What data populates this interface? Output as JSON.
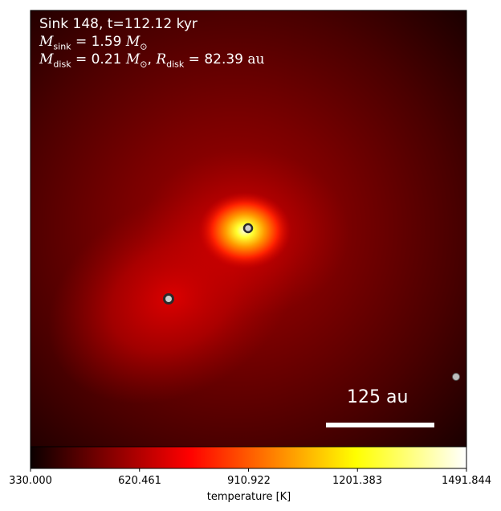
{
  "chart_data": {
    "type": "heatmap",
    "annotations": {
      "line1": "Sink 148, t=112.12 kyr",
      "line2_sym": "M",
      "line2_sub": "sink",
      "line2_rest": " = 1.59 ",
      "line2_unit_sym": "M",
      "line2_unit_sub": "⊙",
      "line3_sym_a": "M",
      "line3_sub_a": "disk",
      "line3_rest_a": " = 0.21 ",
      "line3_unit_sym": "M",
      "line3_unit_sub": "⊙",
      "line3_sep": ", ",
      "line3_sym_b": "R",
      "line3_sub_b": "disk",
      "line3_rest_b": " = 82.39 ",
      "line3_unit_b": "au"
    },
    "scale_bar_label": "125 au",
    "colorbar": {
      "label": "temperature [K]",
      "range": [
        330.0,
        1491.844
      ],
      "ticks": [
        330.0,
        620.461,
        910.922,
        1201.383,
        1491.844
      ],
      "tick_labels": [
        "330.000",
        "620.461",
        "910.922",
        "1201.383",
        "1491.844"
      ],
      "colormap": "hot"
    },
    "sinks": [
      {
        "id": "main",
        "style": "ring"
      },
      {
        "id": "companion",
        "style": "ring"
      },
      {
        "id": "edge",
        "style": "filled"
      }
    ]
  }
}
